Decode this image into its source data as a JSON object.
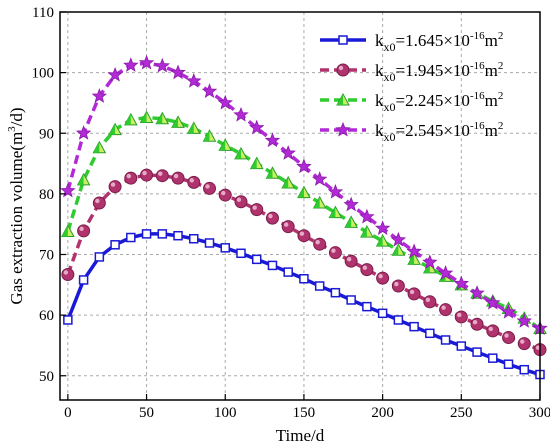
{
  "chart_data": {
    "type": "line",
    "xlabel": "Time/d",
    "ylabel_main": "Gas extraction volume(m",
    "ylabel_sup": "3",
    "ylabel_end": "/d)",
    "xlim": [
      -5,
      300
    ],
    "ylim": [
      46,
      110
    ],
    "xticks": [
      0,
      50,
      100,
      150,
      200,
      250,
      300
    ],
    "yticks": [
      50,
      60,
      70,
      80,
      90,
      100,
      110
    ],
    "grid": true,
    "legend_position": "top-right",
    "x": [
      0,
      10,
      20,
      30,
      40,
      50,
      60,
      70,
      80,
      90,
      100,
      110,
      120,
      130,
      140,
      150,
      160,
      170,
      180,
      190,
      200,
      210,
      220,
      230,
      240,
      250,
      260,
      270,
      280,
      290,
      300
    ],
    "series": [
      {
        "name_pre": "k",
        "name_sub": "x0",
        "name_mid": "=1.645×10",
        "name_sup": "-16",
        "name_end": "m",
        "name_sup2": "2",
        "marker": "square",
        "line_style": "solid",
        "color": "#1a1ad6",
        "marker_fill": "#ffffff",
        "values": [
          59.2,
          65.8,
          69.6,
          71.6,
          72.8,
          73.4,
          73.4,
          73.1,
          72.6,
          71.9,
          71.1,
          70.2,
          69.2,
          68.2,
          67.1,
          66.0,
          64.8,
          63.7,
          62.5,
          61.4,
          60.3,
          59.2,
          58.1,
          57.0,
          55.9,
          54.9,
          53.9,
          52.9,
          51.9,
          51.0,
          50.2
        ]
      },
      {
        "name_pre": "k",
        "name_sub": "x0",
        "name_mid": "=1.945×10",
        "name_sup": "-16",
        "name_end": "m",
        "name_sup2": "2",
        "marker": "circle",
        "line_style": "dash",
        "color": "#b0336e",
        "marker_fill": "#b0336e",
        "values": [
          66.7,
          73.9,
          78.5,
          81.2,
          82.6,
          83.1,
          83.0,
          82.6,
          81.9,
          80.9,
          79.8,
          78.7,
          77.4,
          76.0,
          74.6,
          73.1,
          71.7,
          70.3,
          68.9,
          67.5,
          66.1,
          64.8,
          63.5,
          62.2,
          60.9,
          59.7,
          58.5,
          57.4,
          56.3,
          55.3,
          54.3
        ]
      },
      {
        "name_pre": "k",
        "name_sub": "x0",
        "name_mid": "=2.245×10",
        "name_sup": "-16",
        "name_end": "m",
        "name_sup2": "2",
        "marker": "triangle",
        "line_style": "dash",
        "color": "#2ecc2e",
        "marker_fill": "#7ee04a",
        "values": [
          73.8,
          82.3,
          87.6,
          90.6,
          92.2,
          92.6,
          92.4,
          91.8,
          90.8,
          89.5,
          88.0,
          86.6,
          85.0,
          83.4,
          81.8,
          80.2,
          78.5,
          76.9,
          75.3,
          73.7,
          72.2,
          70.7,
          69.2,
          67.8,
          66.4,
          65.0,
          63.6,
          62.3,
          61.1,
          59.5,
          57.8
        ]
      },
      {
        "name_pre": "k",
        "name_sub": "x0",
        "name_mid": "=2.545×10",
        "name_sup": "-16",
        "name_end": "m",
        "name_sup2": "2",
        "marker": "star",
        "line_style": "dash",
        "color": "#b22ad6",
        "marker_fill": "#b22ad6",
        "values": [
          80.5,
          90.0,
          96.1,
          99.6,
          101.2,
          101.6,
          101.1,
          100.0,
          98.6,
          96.9,
          95.0,
          93.0,
          90.9,
          88.8,
          86.7,
          84.5,
          82.4,
          80.3,
          78.2,
          76.2,
          74.3,
          72.4,
          70.5,
          68.7,
          66.9,
          65.2,
          63.6,
          62.0,
          60.5,
          59.0,
          57.8
        ]
      }
    ]
  }
}
